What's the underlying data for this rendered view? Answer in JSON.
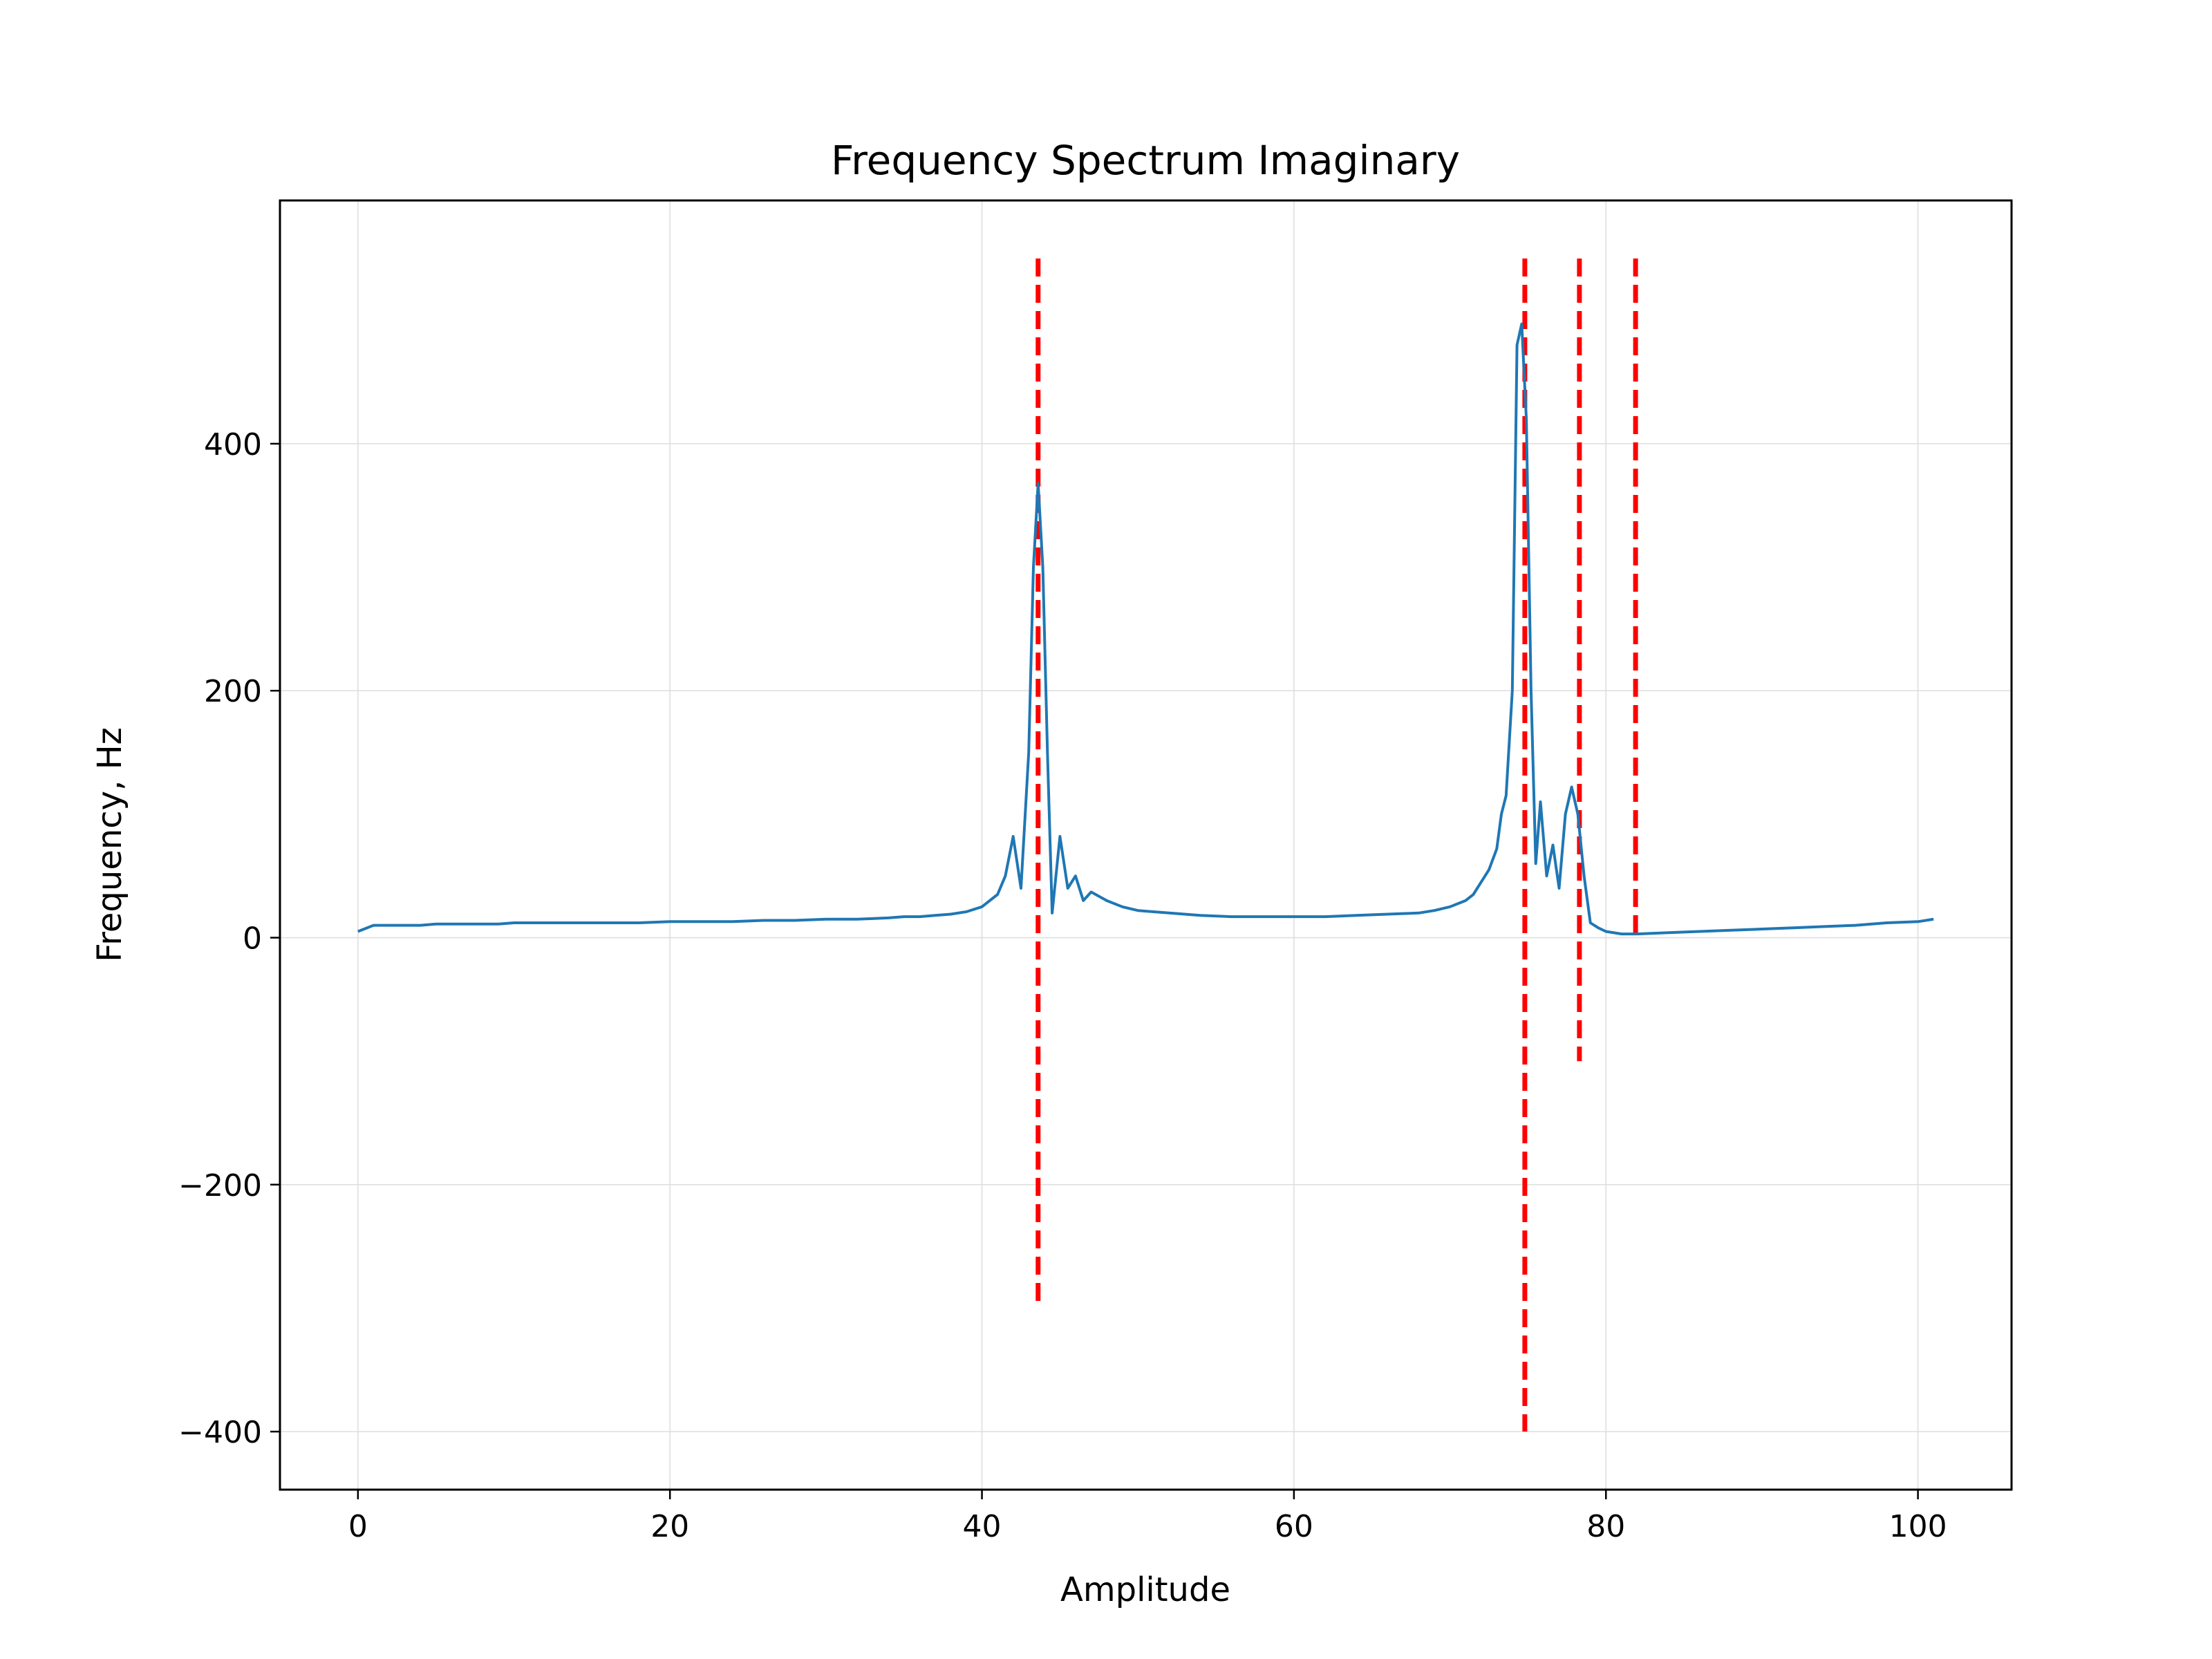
{
  "chart_data": {
    "type": "line",
    "title": "Frequency Spectrum Imaginary",
    "xlabel": "Amplitude",
    "ylabel": "Frequency, Hz",
    "xlim": [
      -5,
      106
    ],
    "ylim": [
      -447,
      597
    ],
    "xticks": [
      0,
      20,
      40,
      60,
      80,
      100
    ],
    "yticks": [
      -400,
      -200,
      0,
      200,
      400
    ],
    "grid": true,
    "colors": {
      "series": "#1f77b4",
      "markers": "#ff0000",
      "grid": "#dddddd"
    },
    "series": [
      {
        "style": "solid",
        "x": [
          0,
          1,
          2,
          3,
          4,
          5,
          6,
          7,
          8,
          9,
          10,
          12,
          14,
          16,
          18,
          20,
          22,
          24,
          26,
          28,
          30,
          32,
          34,
          35,
          36,
          37,
          38,
          39,
          40,
          41,
          41.5,
          42,
          42.5,
          43,
          43.3,
          43.6,
          43.9,
          44.2,
          44.5,
          45,
          45.5,
          46,
          46.5,
          47,
          48,
          49,
          50,
          52,
          54,
          56,
          58,
          60,
          62,
          64,
          66,
          68,
          69,
          70,
          71,
          71.5,
          72,
          72.5,
          73,
          73.3,
          73.6,
          74,
          74.3,
          74.6,
          74.9,
          75.2,
          75.5,
          75.8,
          76.2,
          76.6,
          77,
          77.4,
          77.8,
          78.2,
          78.6,
          79,
          79.5,
          80,
          81,
          82,
          84,
          86,
          88,
          90,
          92,
          94,
          96,
          98,
          100,
          101
        ],
        "y": [
          5,
          10,
          10,
          10,
          10,
          11,
          11,
          11,
          11,
          11,
          12,
          12,
          12,
          12,
          12,
          13,
          13,
          13,
          14,
          14,
          15,
          15,
          16,
          17,
          17,
          18,
          19,
          21,
          25,
          35,
          50,
          82,
          40,
          150,
          300,
          368,
          300,
          150,
          20,
          82,
          40,
          50,
          30,
          37,
          30,
          25,
          22,
          20,
          18,
          17,
          17,
          17,
          17,
          18,
          19,
          20,
          22,
          25,
          30,
          35,
          45,
          55,
          72,
          100,
          115,
          200,
          480,
          497,
          420,
          200,
          60,
          110,
          50,
          75,
          40,
          100,
          122,
          100,
          50,
          12,
          8,
          5,
          3,
          3,
          4,
          5,
          6,
          7,
          8,
          9,
          10,
          12,
          13,
          15
        ]
      }
    ],
    "markers": [
      {
        "x": 43.6,
        "y_range": [
          -300,
          550
        ]
      },
      {
        "x": 74.8,
        "y_range": [
          -400,
          550
        ]
      },
      {
        "x": 78.3,
        "y_range": [
          -100,
          550
        ]
      },
      {
        "x": 81.9,
        "y_range": [
          0,
          550
        ]
      }
    ]
  }
}
